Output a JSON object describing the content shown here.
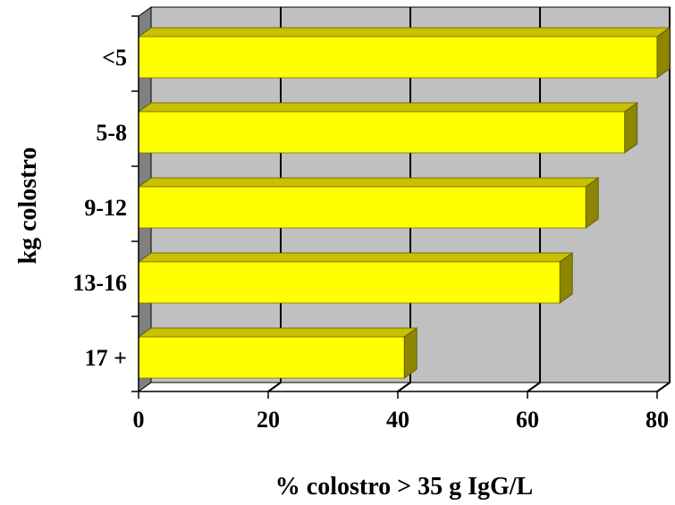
{
  "chart_data": {
    "type": "bar",
    "orientation": "horizontal",
    "categories": [
      "<5",
      "5-8",
      "9-12",
      "13-16",
      "17 +"
    ],
    "values": [
      80,
      75,
      69,
      65,
      41
    ],
    "xlabel": "% colostro > 35 g IgG/L",
    "ylabel": "kg colostro",
    "xlim": [
      0,
      80
    ],
    "xticks": [
      "0",
      "20",
      "40",
      "60",
      "80"
    ],
    "grid": true,
    "three_d": true,
    "colors": {
      "bar_front": "#ffff00",
      "bar_top": "#c8c000",
      "bar_side": "#8c8600",
      "plot_back": "#c0c0c0",
      "left_wall": "#808080",
      "floor": "#ffffff",
      "gridline": "#000000"
    }
  }
}
